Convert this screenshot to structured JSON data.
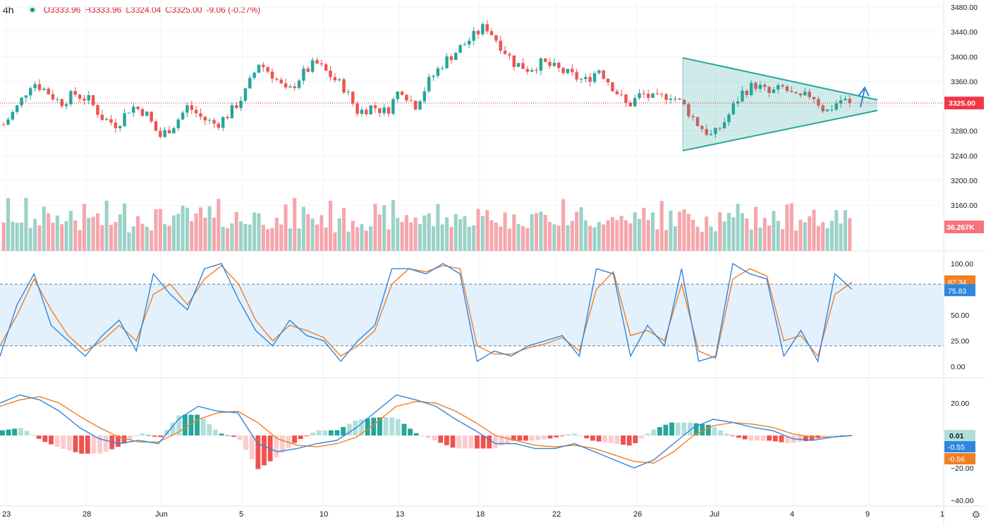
{
  "header": {
    "timeframe": "4h",
    "open": "O3333.96",
    "high": "H3333.96",
    "low": "L3324.04",
    "close": "C3325.00",
    "change": "-9.06 (-0.27%)"
  },
  "colors": {
    "up": "#26a69a",
    "down": "#ef5350",
    "vol_up": "#9bd2c8",
    "vol_down": "#f6a6ac",
    "k_line": "#2e86de",
    "d_line": "#f07f25",
    "triangle": "#26a69a",
    "stoch_band": "#e3f1fd"
  },
  "chart_data": [
    {
      "type": "candlestick",
      "panel": "price",
      "y_ticks": [
        "3480.00",
        "3440.00",
        "3400.00",
        "3360.00",
        "3320.00",
        "3280.00",
        "3240.00",
        "3200.00",
        "3160.00"
      ],
      "ylim": [
        3120,
        3480
      ],
      "last_price_label": "3325.00",
      "x_ticks": [
        "23",
        "28",
        "Jun",
        "5",
        "10",
        "13",
        "18",
        "22",
        "26",
        "Jul",
        "4",
        "9",
        "1"
      ],
      "trend_points": [
        [
          3290,
          3320
        ],
        [
          3320,
          3360
        ],
        [
          3360,
          3345
        ],
        [
          3345,
          3325
        ],
        [
          3325,
          3340
        ],
        [
          3340,
          3330
        ],
        [
          3330,
          3300
        ],
        [
          3300,
          3290
        ],
        [
          3290,
          3320
        ],
        [
          3320,
          3310
        ],
        [
          3310,
          3270
        ],
        [
          3270,
          3290
        ],
        [
          3290,
          3320
        ],
        [
          3320,
          3300
        ],
        [
          3300,
          3290
        ],
        [
          3290,
          3310
        ],
        [
          3310,
          3340
        ],
        [
          3340,
          3390
        ],
        [
          3390,
          3370
        ],
        [
          3370,
          3340
        ],
        [
          3340,
          3370
        ],
        [
          3370,
          3390
        ],
        [
          3390,
          3370
        ],
        [
          3370,
          3350
        ],
        [
          3350,
          3310
        ],
        [
          3310,
          3320
        ],
        [
          3320,
          3310
        ],
        [
          3310,
          3350
        ],
        [
          3350,
          3320
        ],
        [
          3320,
          3360
        ],
        [
          3360,
          3390
        ],
        [
          3390,
          3410
        ],
        [
          3410,
          3430
        ],
        [
          3430,
          3450
        ],
        [
          3450,
          3420
        ],
        [
          3420,
          3390
        ],
        [
          3390,
          3380
        ],
        [
          3380,
          3390
        ],
        [
          3390,
          3380
        ],
        [
          3380,
          3370
        ],
        [
          3370,
          3360
        ],
        [
          3360,
          3380
        ],
        [
          3380,
          3350
        ],
        [
          3350,
          3320
        ],
        [
          3320,
          3340
        ],
        [
          3340,
          3330
        ],
        [
          3330,
          3340
        ],
        [
          3340,
          3320
        ],
        [
          3320,
          3290
        ],
        [
          3290,
          3270
        ],
        [
          3270,
          3300
        ],
        [
          3300,
          3340
        ],
        [
          3340,
          3355
        ],
        [
          3355,
          3340
        ],
        [
          3340,
          3350
        ],
        [
          3350,
          3330
        ],
        [
          3330,
          3340
        ],
        [
          3340,
          3310
        ],
        [
          3310,
          3330
        ],
        [
          3330,
          3325
        ]
      ],
      "volume_label": "36.267K",
      "volume_points": [
        0.55,
        0.65,
        0.38,
        0.55,
        0.45,
        0.62,
        0.47,
        0.6,
        0.5,
        0.58,
        0.45,
        0.55,
        0.5,
        0.6,
        0.42,
        0.63,
        0.5,
        0.45,
        0.55,
        0.47,
        0.6,
        0.5,
        0.45,
        0.58,
        0.42,
        0.55,
        0.5,
        0.6,
        0.45,
        0.52,
        0.55,
        0.5,
        0.6,
        0.45,
        0.55,
        0.5,
        0.47,
        0.58,
        0.52,
        0.45,
        0.55,
        0.6,
        0.5,
        0.45,
        0.55,
        0.5,
        0.58,
        0.45,
        0.6,
        0.5,
        0.55,
        0.47,
        0.52,
        0.5,
        0.45,
        0.55,
        0.6,
        0.5,
        0.58,
        0.52
      ],
      "triangle": {
        "upper_start": 3398,
        "upper_end": 3328,
        "lower_start": 3248,
        "lower_end": 3312,
        "x_range": [
          "28",
          "9"
        ]
      }
    },
    {
      "type": "line",
      "panel": "stochastic",
      "y_ticks": [
        "100.00",
        "75.00",
        "50.00",
        "25.00",
        "0.00"
      ],
      "ylim": [
        0,
        100
      ],
      "band": [
        20,
        80
      ],
      "labels": {
        "d": "82.34",
        "k": "75.83"
      },
      "series": [
        {
          "name": "%K",
          "values": [
            10,
            60,
            90,
            40,
            25,
            10,
            30,
            45,
            15,
            90,
            70,
            55,
            95,
            100,
            65,
            35,
            20,
            45,
            30,
            25,
            5,
            25,
            40,
            95,
            95,
            90,
            100,
            90,
            5,
            15,
            10,
            20,
            25,
            30,
            10,
            95,
            90,
            10,
            40,
            20,
            95,
            5,
            10,
            100,
            90,
            85,
            10,
            35,
            5,
            90,
            75
          ]
        },
        {
          "name": "%D",
          "values": [
            20,
            50,
            85,
            55,
            30,
            15,
            25,
            40,
            25,
            70,
            80,
            60,
            85,
            98,
            80,
            45,
            25,
            40,
            35,
            28,
            10,
            20,
            35,
            80,
            95,
            92,
            98,
            95,
            20,
            12,
            12,
            18,
            22,
            28,
            15,
            75,
            92,
            30,
            35,
            25,
            80,
            15,
            8,
            85,
            95,
            88,
            25,
            30,
            10,
            70,
            82
          ]
        }
      ]
    },
    {
      "type": "bar+line",
      "panel": "macd",
      "y_ticks": [
        "20.00",
        "-20.00",
        "-40.00"
      ],
      "ylim": [
        -45,
        30
      ],
      "labels": {
        "hist": "0.01",
        "macd": "-0.55",
        "signal": "-0.56"
      },
      "series": [
        {
          "name": "MACD",
          "values": [
            20,
            25,
            22,
            15,
            5,
            -2,
            -5,
            -3,
            -5,
            10,
            18,
            15,
            14,
            -5,
            -10,
            -8,
            -5,
            -3,
            5,
            15,
            25,
            22,
            18,
            10,
            3,
            -5,
            -5,
            -8,
            -8,
            -5,
            -10,
            -15,
            -20,
            -15,
            -5,
            5,
            10,
            8,
            5,
            3,
            -2,
            -3,
            -1,
            0
          ]
        },
        {
          "name": "Signal",
          "values": [
            18,
            22,
            24,
            20,
            12,
            5,
            -1,
            -4,
            -4,
            2,
            10,
            14,
            15,
            8,
            -2,
            -6,
            -7,
            -5,
            -1,
            8,
            18,
            21,
            20,
            15,
            8,
            0,
            -3,
            -6,
            -7,
            -6,
            -8,
            -12,
            -16,
            -17,
            -10,
            0,
            6,
            8,
            7,
            5,
            1,
            -1,
            -1,
            0
          ]
        }
      ]
    }
  ]
}
